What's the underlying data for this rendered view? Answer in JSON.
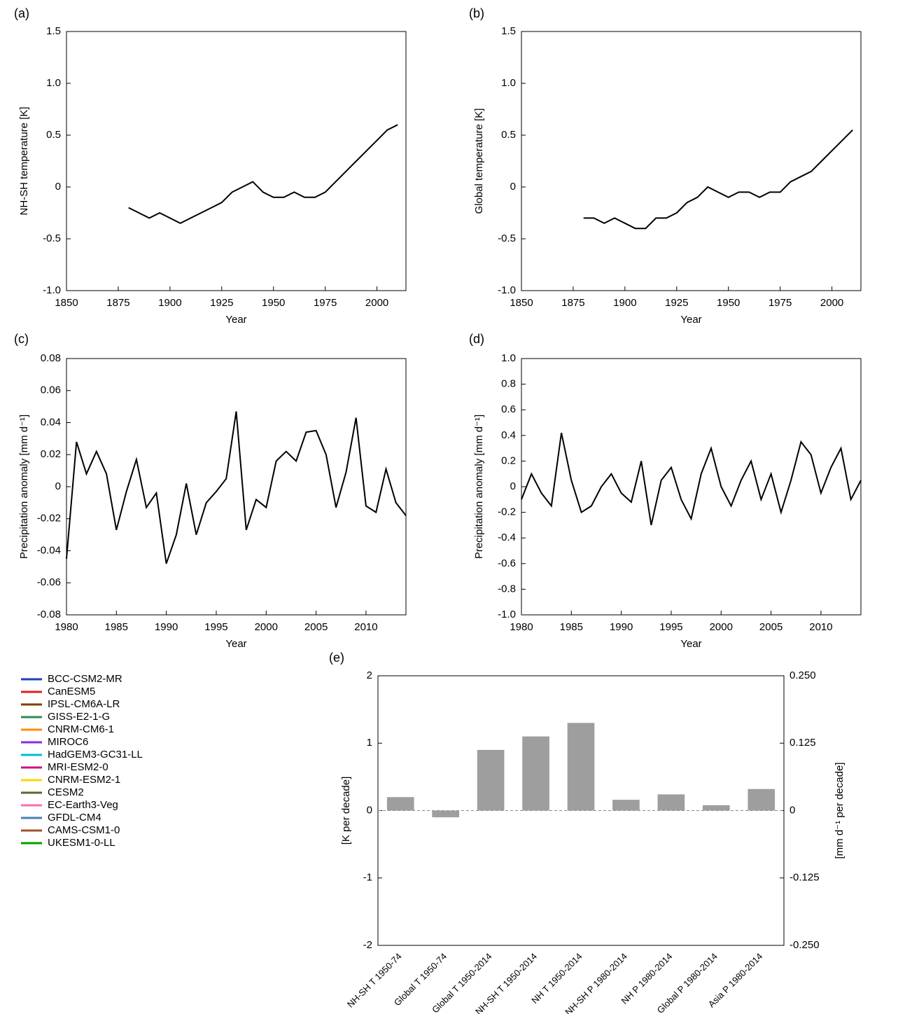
{
  "chart_data": [
    {
      "type": "line",
      "label": "(a)",
      "ylabel": "NH-SH temperature [K]",
      "xlabel": "Year",
      "xlim": [
        1850,
        2014
      ],
      "xticks": [
        1850,
        1875,
        1900,
        1925,
        1950,
        1975,
        2000
      ],
      "ylim": [
        -1,
        1.5
      ],
      "yticks": [
        {
          "value": -1,
          "label": "-1.0"
        },
        -0.5,
        0,
        0.5,
        {
          "value": 1,
          "label": "1.0"
        },
        1.5
      ],
      "x": [
        1880,
        1885,
        1890,
        1895,
        1900,
        1905,
        1910,
        1915,
        1920,
        1925,
        1930,
        1935,
        1940,
        1945,
        1950,
        1955,
        1960,
        1965,
        1970,
        1975,
        1980,
        1985,
        1990,
        1995,
        2000,
        2005,
        2010
      ],
      "series": [
        {
          "color": "#000000",
          "values": [
            -0.2,
            -0.25,
            -0.3,
            -0.25,
            -0.3,
            -0.35,
            -0.3,
            -0.25,
            -0.2,
            -0.15,
            -0.05,
            0.0,
            0.05,
            -0.05,
            -0.1,
            -0.1,
            -0.05,
            -0.1,
            -0.1,
            -0.05,
            0.05,
            0.15,
            0.25,
            0.35,
            0.45,
            0.55,
            0.6
          ]
        }
      ]
    },
    {
      "type": "line",
      "label": "(b)",
      "ylabel": "Global temperature [K]",
      "xlabel": "Year",
      "xlim": [
        1850,
        2014
      ],
      "xticks": [
        1850,
        1875,
        1900,
        1925,
        1950,
        1975,
        2000
      ],
      "ylim": [
        -1,
        1.5
      ],
      "yticks": [
        {
          "value": -1,
          "label": "-1.0"
        },
        -0.5,
        0,
        0.5,
        {
          "value": 1,
          "label": "1.0"
        },
        1.5
      ],
      "x": [
        1880,
        1885,
        1890,
        1895,
        1900,
        1905,
        1910,
        1915,
        1920,
        1925,
        1930,
        1935,
        1940,
        1945,
        1950,
        1955,
        1960,
        1965,
        1970,
        1975,
        1980,
        1985,
        1990,
        1995,
        2000,
        2005,
        2010
      ],
      "series": [
        {
          "color": "#000000",
          "values": [
            -0.3,
            -0.3,
            -0.35,
            -0.3,
            -0.35,
            -0.4,
            -0.4,
            -0.3,
            -0.3,
            -0.25,
            -0.15,
            -0.1,
            0.0,
            -0.05,
            -0.1,
            -0.05,
            -0.05,
            -0.1,
            -0.05,
            -0.05,
            0.05,
            0.1,
            0.15,
            0.25,
            0.35,
            0.45,
            0.55
          ]
        }
      ]
    },
    {
      "type": "line",
      "label": "(c)",
      "ylabel": "Precipitation anomaly [mm d⁻¹]",
      "xlabel": "Year",
      "xlim": [
        1980,
        2014
      ],
      "xticks": [
        1980,
        1985,
        1990,
        1995,
        2000,
        2005,
        2010
      ],
      "ylim": [
        -0.08,
        0.08
      ],
      "yticks": [
        -0.08,
        -0.06,
        -0.04,
        -0.02,
        0,
        0.02,
        0.04,
        0.06,
        0.08
      ],
      "x": [
        1980,
        1981,
        1982,
        1983,
        1984,
        1985,
        1986,
        1987,
        1988,
        1989,
        1990,
        1991,
        1992,
        1993,
        1994,
        1995,
        1996,
        1997,
        1998,
        1999,
        2000,
        2001,
        2002,
        2003,
        2004,
        2005,
        2006,
        2007,
        2008,
        2009,
        2010,
        2011,
        2012,
        2013,
        2014
      ],
      "series": [
        {
          "color": "#000000",
          "values": [
            -0.045,
            0.028,
            0.008,
            0.022,
            0.008,
            -0.027,
            -0.003,
            0.017,
            -0.013,
            -0.004,
            -0.048,
            -0.03,
            0.002,
            -0.03,
            -0.01,
            -0.003,
            0.005,
            0.047,
            -0.027,
            -0.008,
            -0.013,
            0.016,
            0.022,
            0.016,
            0.034,
            0.035,
            0.02,
            -0.013,
            0.009,
            0.043,
            -0.012,
            -0.016,
            0.011,
            -0.01,
            -0.018
          ]
        }
      ]
    },
    {
      "type": "line",
      "label": "(d)",
      "ylabel": "Precipitation anomaly [mm d⁻¹]",
      "xlabel": "Year",
      "xlim": [
        1980,
        2014
      ],
      "xticks": [
        1980,
        1985,
        1990,
        1995,
        2000,
        2005,
        2010
      ],
      "ylim": [
        -1,
        1
      ],
      "yticks": [
        {
          "value": -1,
          "label": "-1.0"
        },
        -0.8,
        -0.6,
        -0.4,
        -0.2,
        0,
        0.2,
        0.4,
        0.6,
        0.8,
        {
          "value": 1,
          "label": "1.0"
        }
      ],
      "x": [
        1980,
        1981,
        1982,
        1983,
        1984,
        1985,
        1986,
        1987,
        1988,
        1989,
        1990,
        1991,
        1992,
        1993,
        1994,
        1995,
        1996,
        1997,
        1998,
        1999,
        2000,
        2001,
        2002,
        2003,
        2004,
        2005,
        2006,
        2007,
        2008,
        2009,
        2010,
        2011,
        2012,
        2013,
        2014
      ],
      "series": [
        {
          "color": "#000000",
          "values": [
            -0.1,
            0.1,
            -0.05,
            -0.15,
            0.42,
            0.05,
            -0.2,
            -0.15,
            0.0,
            0.1,
            -0.05,
            -0.12,
            0.2,
            -0.3,
            0.05,
            0.15,
            -0.1,
            -0.25,
            0.1,
            0.3,
            0.0,
            -0.15,
            0.05,
            0.2,
            -0.1,
            0.1,
            -0.2,
            0.05,
            0.35,
            0.25,
            -0.05,
            0.15,
            0.3,
            -0.1,
            0.05
          ]
        }
      ]
    },
    {
      "type": "bar",
      "label": "(e)",
      "ylabel": "[K per decade]",
      "y2label": "[mm d⁻¹ per decade]",
      "categories": [
        "NH-SH T 1950-74",
        "Global T 1950-74",
        "Global T 1950-2014",
        "NH-SH T 1950-2014",
        "NH T 1950-2014",
        "NH-SH P 1980-2014",
        "NH P 1980-2014",
        "Global P 1980-2014",
        "Asia P 1980-2014"
      ],
      "ylim": [
        -2,
        2
      ],
      "yticks": [
        -2,
        -1,
        0,
        1,
        2
      ],
      "y2lim": [
        -0.25,
        0.25
      ],
      "y2ticks": [
        {
          "value": -0.25,
          "label": "-0.250"
        },
        {
          "value": -0.125,
          "label": "-0.125"
        },
        0,
        {
          "value": 0.125,
          "label": "0.125"
        },
        {
          "value": 0.25,
          "label": "0.250"
        }
      ],
      "series": [
        {
          "color": "#9e9e9e",
          "values": [
            0.2,
            -0.1,
            0.9,
            1.1,
            1.3,
            null,
            null,
            null,
            null
          ]
        },
        {
          "color": "#9e9e9e",
          "axis": "y2",
          "values": [
            null,
            null,
            null,
            null,
            null,
            0.02,
            0.03,
            0.01,
            0.04
          ]
        }
      ],
      "legend": [
        {
          "name": "BCC-CSM2-MR",
          "color": "#1f3fbf"
        },
        {
          "name": "CanESM5",
          "color": "#e02020"
        },
        {
          "name": "IPSL-CM6A-LR",
          "color": "#7b3f00"
        },
        {
          "name": "GISS-E2-1-G",
          "color": "#2e8b57"
        },
        {
          "name": "CNRM-CM6-1",
          "color": "#ff8c00"
        },
        {
          "name": "MIROC6",
          "color": "#8a2be2"
        },
        {
          "name": "HadGEM3-GC31-LL",
          "color": "#00bcd4"
        },
        {
          "name": "MRI-ESM2-0",
          "color": "#c71585"
        },
        {
          "name": "CNRM-ESM2-1",
          "color": "#ffd700"
        },
        {
          "name": "CESM2",
          "color": "#556b2f"
        },
        {
          "name": "EC-Earth3-Veg",
          "color": "#ff69b4"
        },
        {
          "name": "GFDL-CM4",
          "color": "#4682b4"
        },
        {
          "name": "CAMS-CSM1-0",
          "color": "#a0522d"
        },
        {
          "name": "UKESM1-0-LL",
          "color": "#00a000"
        }
      ]
    }
  ]
}
